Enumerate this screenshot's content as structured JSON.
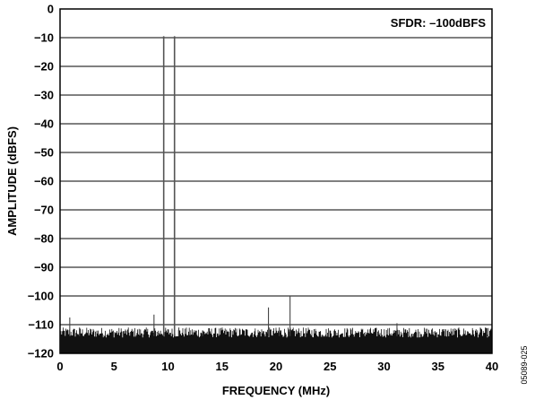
{
  "chart_data": {
    "type": "line",
    "title": "",
    "xlabel": "FREQUENCY (MHz)",
    "ylabel": "AMPLITUDE (dBFS)",
    "xlim": [
      0,
      40
    ],
    "ylim": [
      -120,
      0
    ],
    "x_ticks": [
      0,
      5,
      10,
      15,
      20,
      25,
      30,
      35,
      40
    ],
    "y_ticks": [
      0,
      -10,
      -20,
      -30,
      -40,
      -50,
      -60,
      -70,
      -80,
      -90,
      -100,
      -110,
      -120
    ],
    "x_tick_labels": [
      "0",
      "5",
      "10",
      "15",
      "20",
      "25",
      "30",
      "35",
      "40"
    ],
    "y_tick_labels": [
      "0",
      "−10",
      "−20",
      "−30",
      "−40",
      "−50",
      "−60",
      "−70",
      "−80",
      "−90",
      "−100",
      "−110",
      "−120"
    ],
    "grid": "horizontal",
    "annotation": "SFDR: –100dBFS",
    "noise_floor": -116,
    "peaks": [
      {
        "x": 0.9,
        "y": -107.5
      },
      {
        "x": 1.8,
        "y": -111
      },
      {
        "x": 8.7,
        "y": -106.5
      },
      {
        "x": 9.6,
        "y": -9.5
      },
      {
        "x": 10.6,
        "y": -9.5
      },
      {
        "x": 11.0,
        "y": -111
      },
      {
        "x": 13.2,
        "y": -112
      },
      {
        "x": 19.3,
        "y": -104
      },
      {
        "x": 20.3,
        "y": -111
      },
      {
        "x": 21.3,
        "y": -100
      },
      {
        "x": 31.2,
        "y": -109.5
      },
      {
        "x": 39.6,
        "y": -113.5
      }
    ]
  },
  "figure_id": "05089-025"
}
